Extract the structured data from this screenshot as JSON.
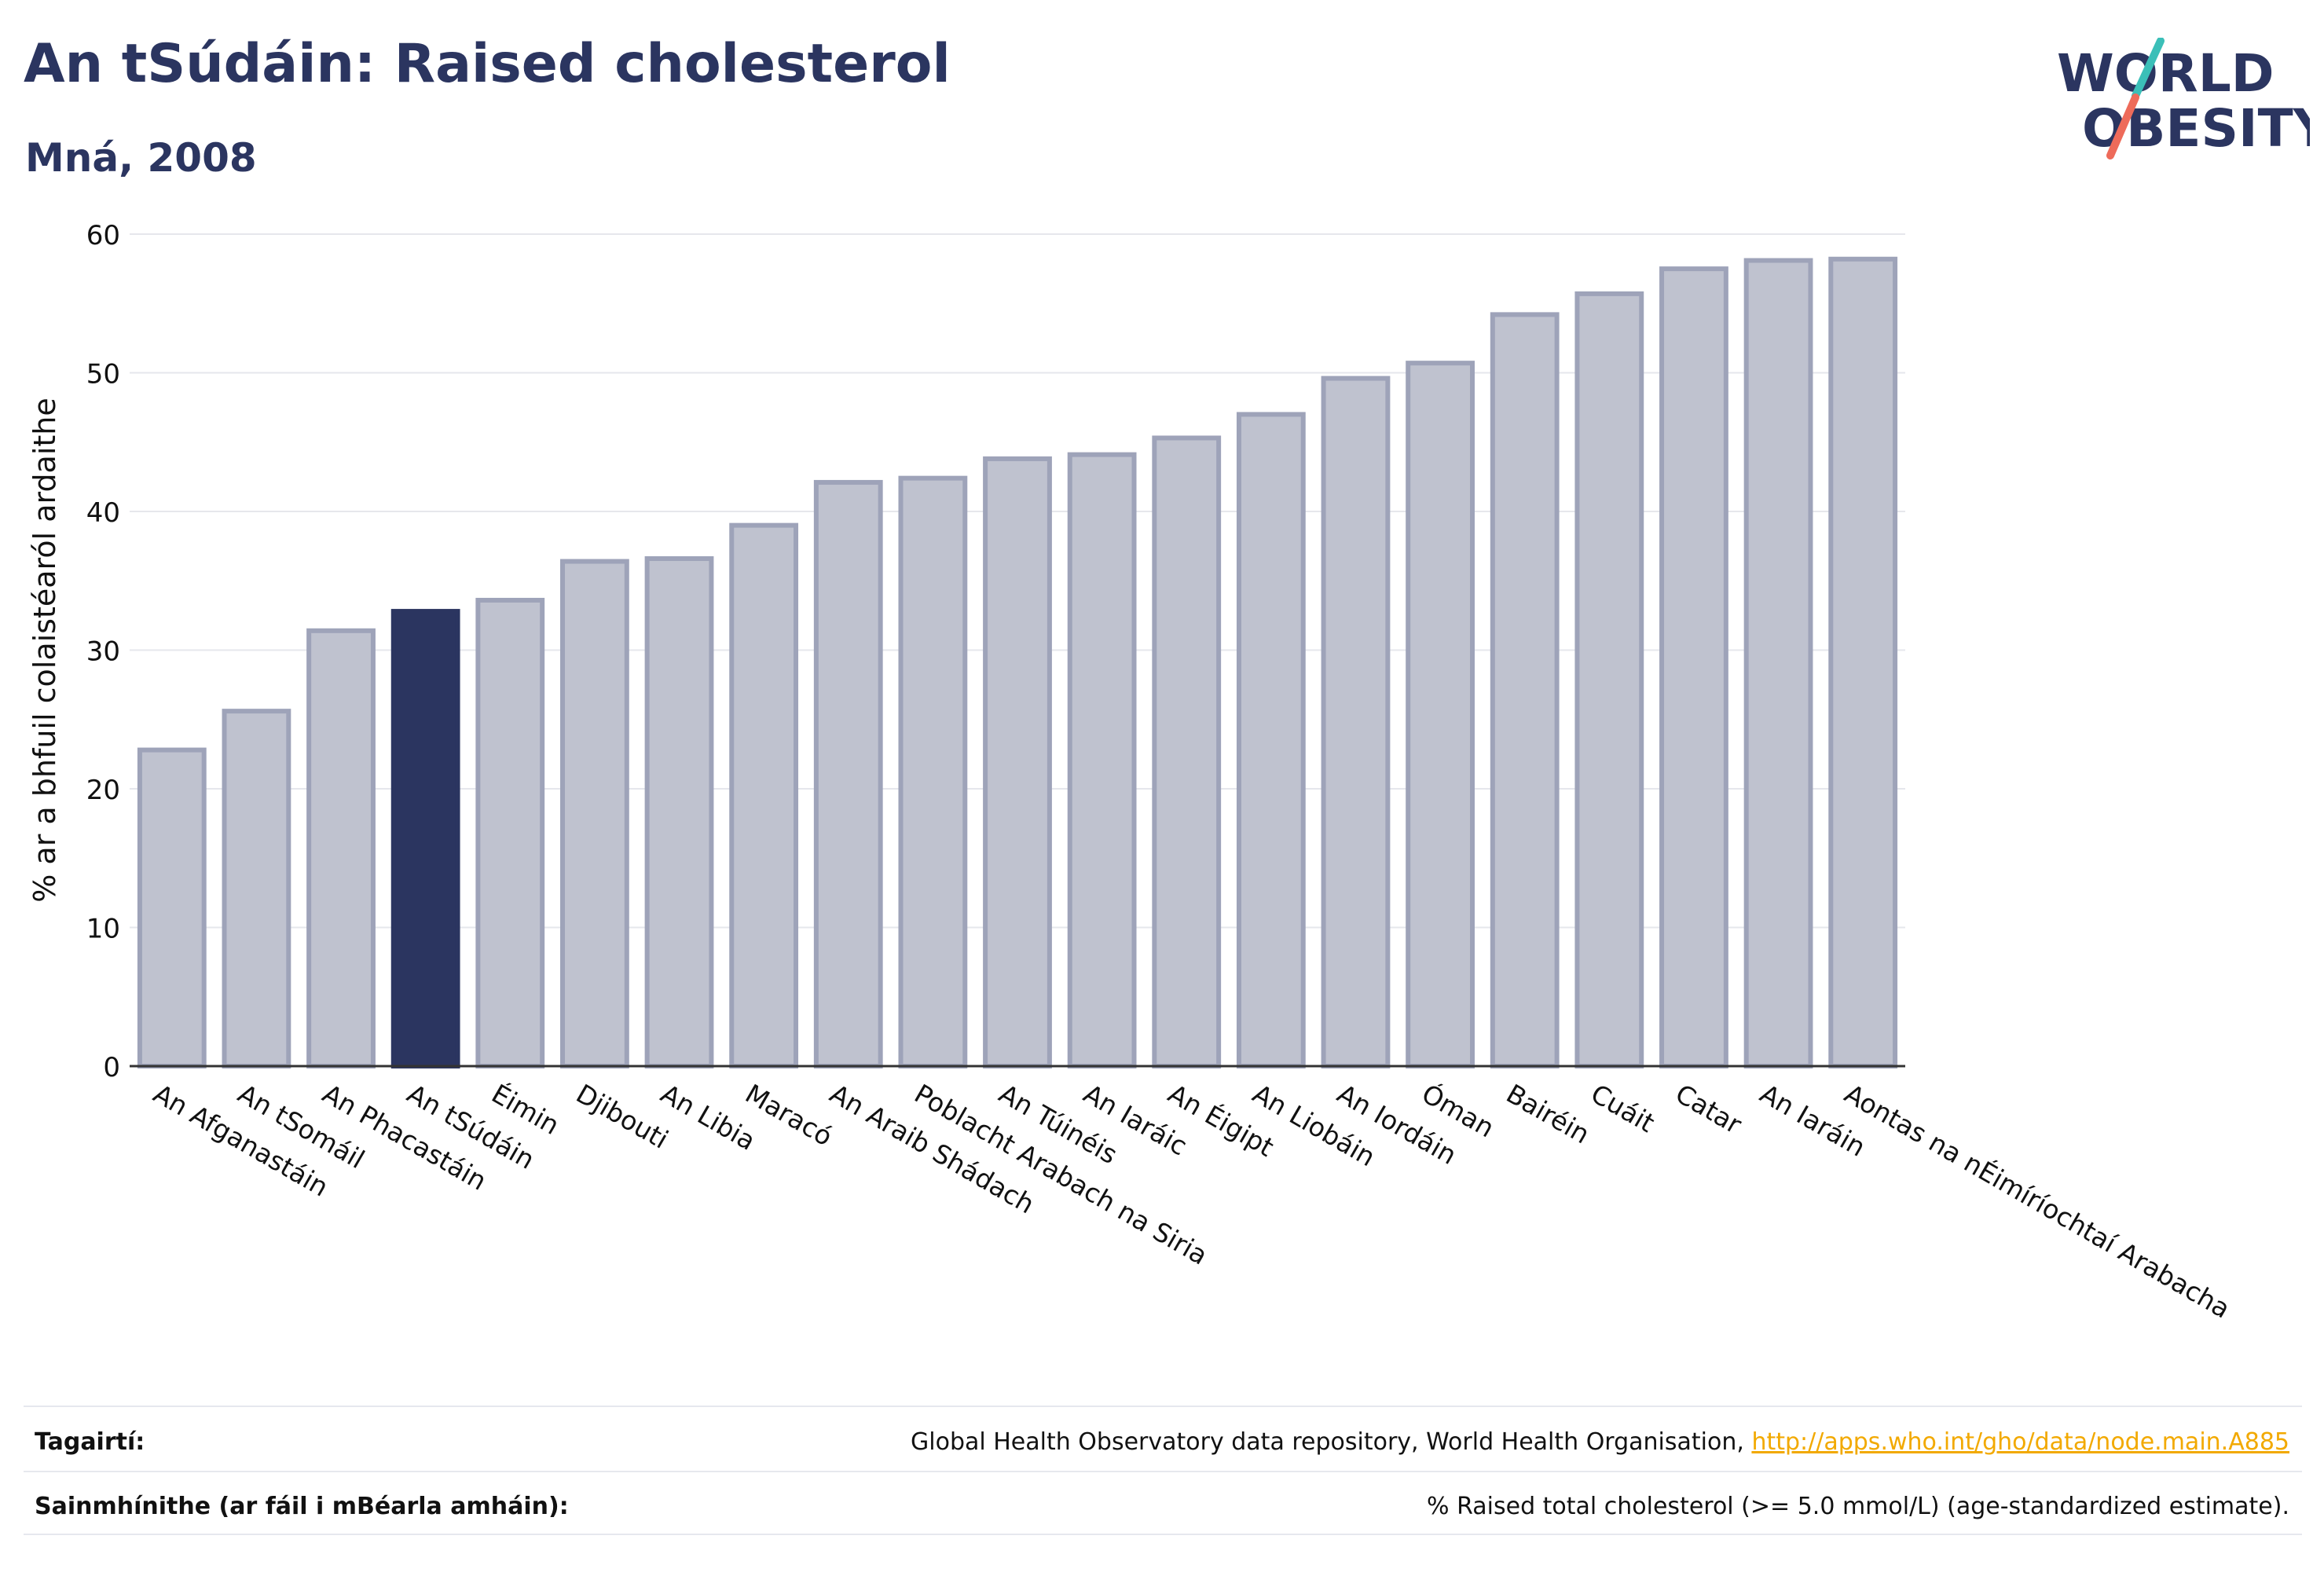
{
  "header": {
    "title": "An tSúdáin: Raised cholesterol",
    "subtitle": "Mná, 2008"
  },
  "logo": {
    "line1": "WORLD",
    "line2": "OBESITY",
    "accent_teal": "#3bbfb8",
    "accent_coral": "#ee6b5a"
  },
  "colors": {
    "bar_default": "#bfc2cf",
    "bar_default_border": "#9ea3b9",
    "bar_highlight": "#2b3560",
    "grid": "#e6e7ec",
    "text": "#111111"
  },
  "chart_data": {
    "type": "bar",
    "ylabel": "% ar a bhfuil colaistéaról ardaithe",
    "xlabel": "",
    "ylim": [
      0,
      60
    ],
    "yticks": [
      0,
      10,
      20,
      30,
      40,
      50,
      60
    ],
    "grid": true,
    "highlight": "An tSúdáin",
    "categories": [
      "An Afganastáin",
      "An tSomáil",
      "An Phacastáin",
      "An tSúdáin",
      "Éimin",
      "Djibouti",
      "An Libia",
      "Maracó",
      "An Araib Shádach",
      "Poblacht Arabach na Siria",
      "An Túinéis",
      "An Iaráic",
      "An Éigipt",
      "An Liobáin",
      "An Iordáin",
      "Óman",
      "Bairéin",
      "Cuáit",
      "Catar",
      "An Iaráin",
      "Aontas na nÉimíríochtaí Arabacha"
    ],
    "values": [
      22.8,
      25.6,
      31.4,
      32.8,
      33.6,
      36.4,
      36.6,
      39.0,
      42.1,
      42.4,
      43.8,
      44.1,
      45.3,
      47.0,
      49.6,
      50.7,
      54.2,
      55.7,
      57.5,
      58.1,
      58.2
    ]
  },
  "footer": {
    "references_label": "Tagairtí:",
    "references_text": "Global Health Observatory data repository, World Health Organisation, ",
    "references_link": "http://apps.who.int/gho/data/node.main.A885",
    "definitions_label": "Sainmhínithe (ar fáil i mBéarla amháin):",
    "definitions_text": "% Raised total cholesterol (>= 5.0 mmol/L) (age-standardized estimate)."
  }
}
